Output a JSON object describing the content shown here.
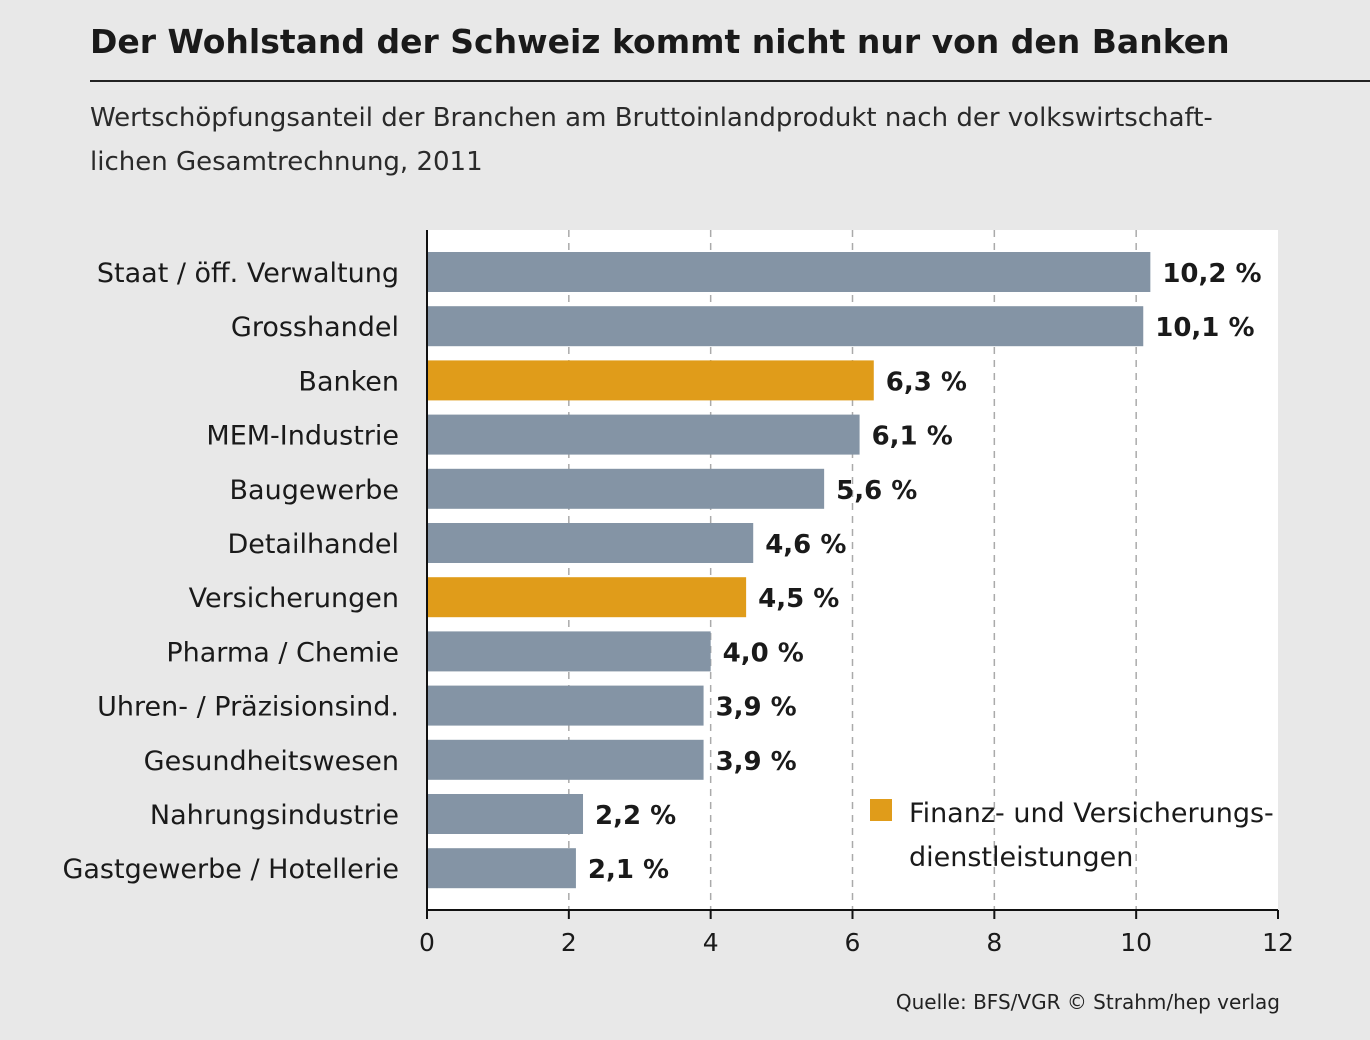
{
  "title": "Der Wohlstand der Schweiz kommt nicht nur von den Banken",
  "subtitle": "Wertschöpfungsanteil der Branchen am Bruttoinlandprodukt nach der volkswirtschaft-lichen Gesamtrechnung, 2011",
  "source": "Quelle: BFS/VGR  © Strahm/hep verlag",
  "colors": {
    "default_bar": "#8494a5",
    "highlight_bar": "#e09c1a",
    "plot_background": "#ffffff",
    "page_background": "#e8e8e8"
  },
  "chart_data": {
    "type": "bar",
    "orientation": "horizontal",
    "categories": [
      "Staat / öff. Verwaltung",
      "Grosshandel",
      "Banken",
      "MEM-Industrie",
      "Baugewerbe",
      "Detailhandel",
      "Versicherungen",
      "Pharma / Chemie",
      "Uhren- / Präzisionsind.",
      "Gesundheitswesen",
      "Nahrungsindustrie",
      "Gastgewerbe / Hotellerie"
    ],
    "values": [
      10.2,
      10.1,
      6.3,
      6.1,
      5.6,
      4.6,
      4.5,
      4.0,
      3.9,
      3.9,
      2.2,
      2.1
    ],
    "value_labels": [
      "10,2 %",
      "10,1 %",
      "6,3 %",
      "6,1 %",
      "5,6 %",
      "4,6 %",
      "4,5 %",
      "4,0 %",
      "3,9 %",
      "3,9 %",
      "2,2 %",
      "2,1 %"
    ],
    "highlighted": [
      false,
      false,
      true,
      false,
      false,
      false,
      true,
      false,
      false,
      false,
      false,
      false
    ],
    "xlim": [
      0,
      12
    ],
    "xticks": [
      0,
      2,
      4,
      6,
      8,
      10,
      12
    ],
    "xtick_labels": [
      "0",
      "2",
      "4",
      "6",
      "8",
      "10",
      "12"
    ],
    "grid": "vertical dashed",
    "legend": {
      "placement": "bottom-right",
      "entries": [
        {
          "label_line1": "Finanz- und Versicherungs-",
          "label_line2": "dienstleistungen",
          "color": "#e09c1a"
        }
      ]
    }
  }
}
